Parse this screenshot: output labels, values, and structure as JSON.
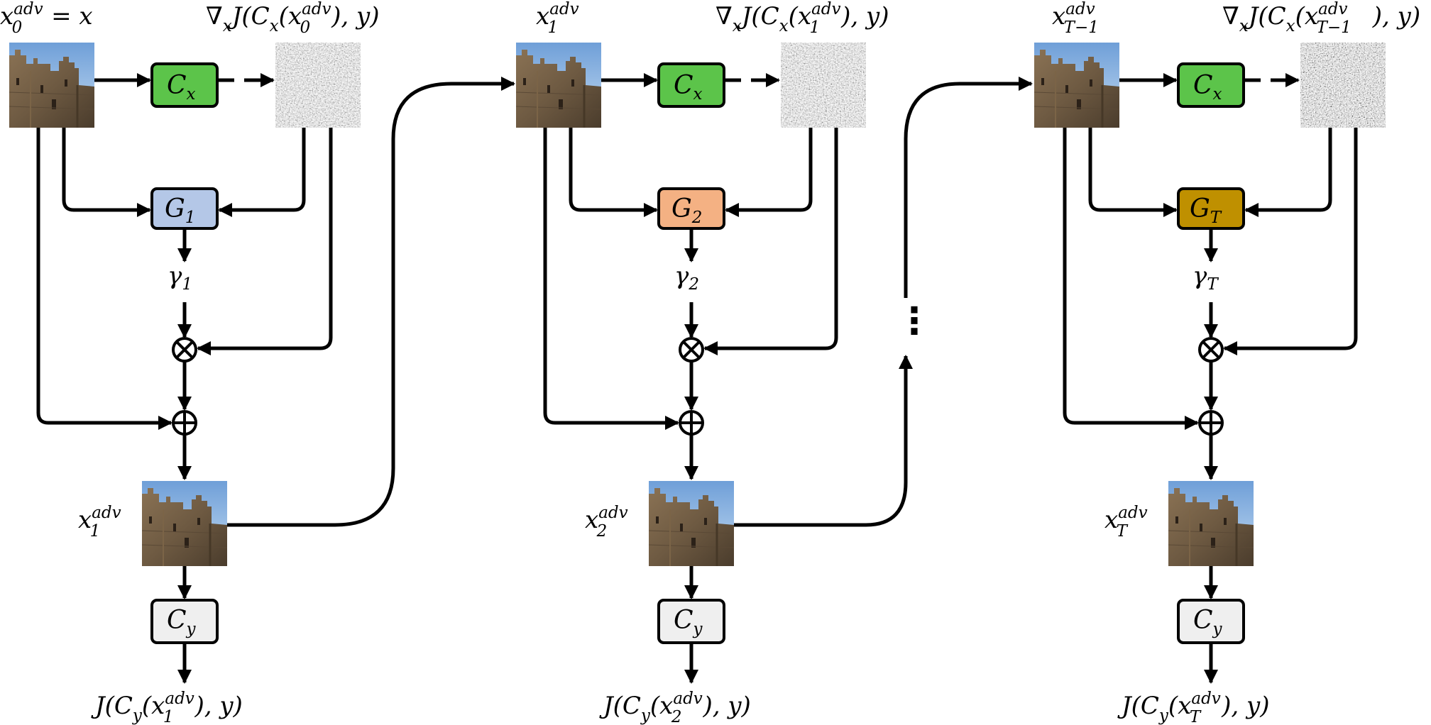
{
  "stages": [
    {
      "input_label": {
        "base": "x",
        "sub": "0",
        "sup": "adv",
        "suffix": " = x"
      },
      "grad_label": {
        "pre": "∇",
        "pre_sub": "x",
        "main": "J(C",
        "main_sub": "x",
        "open": "(x",
        "x_sub": "0",
        "x_sup": "adv",
        "close": "), y)"
      },
      "classifier_x": {
        "base": "C",
        "sub": "x",
        "color": "#5cc44a"
      },
      "generator": {
        "base": "G",
        "sub": "1",
        "color": "#b4c7e7"
      },
      "gamma": {
        "base": "γ",
        "sub": "1"
      },
      "output_label": {
        "base": "x",
        "sub": "1",
        "sup": "adv"
      },
      "classifier_y": {
        "base": "C",
        "sub": "y",
        "color": "#efefef"
      },
      "loss_label": {
        "pre": "J(C",
        "pre_sub": "y",
        "open": "(x",
        "x_sub": "1",
        "x_sup": "adv",
        "close": "), y)"
      }
    },
    {
      "input_label": {
        "base": "x",
        "sub": "1",
        "sup": "adv",
        "suffix": ""
      },
      "grad_label": {
        "pre": "∇",
        "pre_sub": "x",
        "main": "J(C",
        "main_sub": "x",
        "open": "(x",
        "x_sub": "1",
        "x_sup": "adv",
        "close": "), y)"
      },
      "classifier_x": {
        "base": "C",
        "sub": "x",
        "color": "#5cc44a"
      },
      "generator": {
        "base": "G",
        "sub": "2",
        "color": "#f4b183"
      },
      "gamma": {
        "base": "γ",
        "sub": "2"
      },
      "output_label": {
        "base": "x",
        "sub": "2",
        "sup": "adv"
      },
      "classifier_y": {
        "base": "C",
        "sub": "y",
        "color": "#efefef"
      },
      "loss_label": {
        "pre": "J(C",
        "pre_sub": "y",
        "open": "(x",
        "x_sub": "2",
        "x_sup": "adv",
        "close": "), y)"
      }
    },
    {
      "input_label": {
        "base": "x",
        "sub": "T−1",
        "sup": "adv",
        "suffix": ""
      },
      "grad_label": {
        "pre": "∇",
        "pre_sub": "x",
        "main": "J(C",
        "main_sub": "x",
        "open": "(x",
        "x_sub": "T−1",
        "x_sup": "adv",
        "close": "), y)"
      },
      "classifier_x": {
        "base": "C",
        "sub": "x",
        "color": "#5cc44a"
      },
      "generator": {
        "base": "G",
        "sub": "T",
        "color": "#bf9000"
      },
      "gamma": {
        "base": "γ",
        "sub": "T"
      },
      "output_label": {
        "base": "x",
        "sub": "T",
        "sup": "adv"
      },
      "classifier_y": {
        "base": "C",
        "sub": "y",
        "color": "#efefef"
      },
      "loss_label": {
        "pre": "J(C",
        "pre_sub": "y",
        "open": "(x",
        "x_sub": "T",
        "x_sup": "adv",
        "close": "), y)"
      }
    }
  ],
  "ops": {
    "multiply": "⊗",
    "add": "⊕"
  },
  "ellipsis": "⋮"
}
